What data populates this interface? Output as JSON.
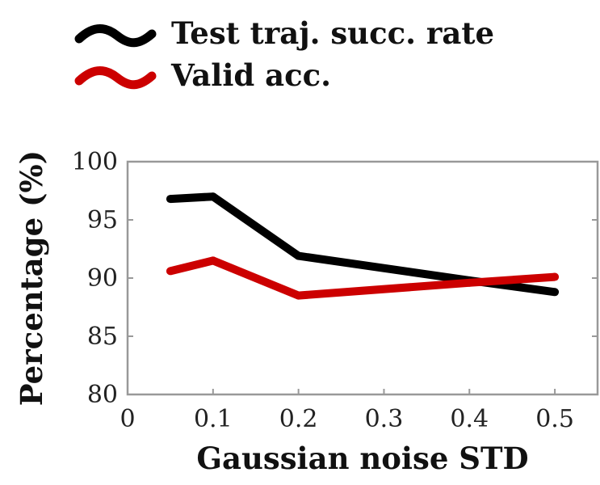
{
  "chart_data": {
    "type": "line",
    "title": "",
    "xlabel": "Gaussian noise STD",
    "ylabel": "Percentage (%)",
    "xlim": [
      0,
      0.55
    ],
    "ylim": [
      80,
      100
    ],
    "xticks": [
      "0",
      "0.1",
      "0.2",
      "0.3",
      "0.4",
      "0.5"
    ],
    "yticks": [
      "80",
      "85",
      "90",
      "95",
      "100"
    ],
    "grid": false,
    "legend_position": "top-left, above plot",
    "x": [
      0.05,
      0.1,
      0.2,
      0.4,
      0.5
    ],
    "series": [
      {
        "name": "Test traj. succ. rate",
        "color": "#000000",
        "values": [
          96.8,
          97.0,
          91.9,
          89.8,
          88.8
        ]
      },
      {
        "name": "Valid acc.",
        "color": "#cc0000",
        "values": [
          90.6,
          91.5,
          88.5,
          89.6,
          90.1
        ]
      }
    ]
  }
}
